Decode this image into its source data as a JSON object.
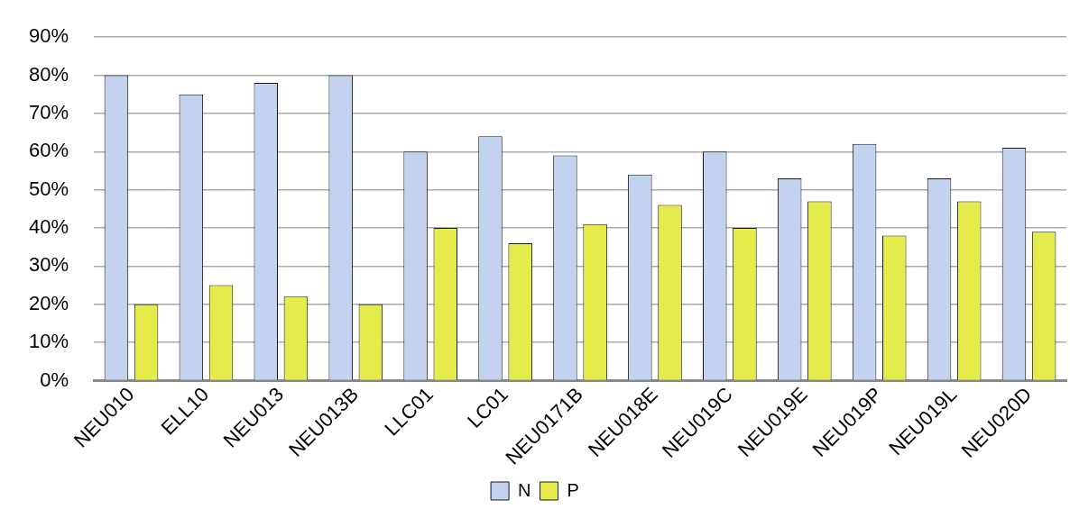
{
  "chart_data": {
    "type": "bar",
    "categories": [
      "NEU010",
      "ELL10",
      "NEU013",
      "NEU013B",
      "LLC01",
      "LC01",
      "NEU0171B",
      "NEU018E",
      "NEU019C",
      "NEU019E",
      "NEU019P",
      "NEU019L",
      "NEU020D"
    ],
    "series": [
      {
        "name": "N",
        "color": "#c3d2ee",
        "values": [
          80,
          75,
          78,
          80,
          60,
          64,
          59,
          54,
          60,
          53,
          62,
          53,
          61
        ]
      },
      {
        "name": "P",
        "color": "#e3ec4a",
        "values": [
          20,
          25,
          22,
          20,
          40,
          36,
          41,
          46,
          40,
          47,
          38,
          47,
          39
        ]
      }
    ],
    "ylim": [
      0,
      90
    ],
    "yticks": [
      {
        "value": 0,
        "label": "0%"
      },
      {
        "value": 10,
        "label": "10%"
      },
      {
        "value": 20,
        "label": "20%"
      },
      {
        "value": 30,
        "label": "30%"
      },
      {
        "value": 40,
        "label": "40%"
      },
      {
        "value": 50,
        "label": "50%"
      },
      {
        "value": 60,
        "label": "60%"
      },
      {
        "value": 70,
        "label": "70%"
      },
      {
        "value": 80,
        "label": "80%"
      },
      {
        "value": 90,
        "label": "90%"
      }
    ],
    "grid": "y",
    "legend": "bottom"
  }
}
